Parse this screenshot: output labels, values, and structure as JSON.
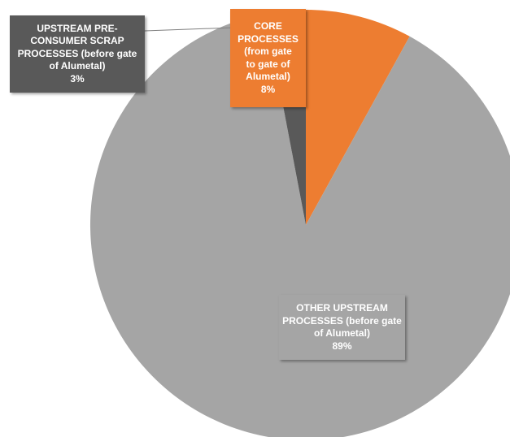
{
  "chart_data": {
    "type": "pie",
    "title": "",
    "slices": [
      {
        "key": "core",
        "lines": [
          "CORE",
          "PROCESSES",
          "(from gate",
          "to gate of",
          "Alumetal)"
        ],
        "percent_label": "8%",
        "value": 8,
        "color": "#ED7D31"
      },
      {
        "key": "other",
        "lines": [
          "OTHER UPSTREAM",
          "PROCESSES (before gate",
          "of Alumetal)"
        ],
        "percent_label": "89%",
        "value": 89,
        "color": "#A5A5A5"
      },
      {
        "key": "scrap",
        "lines": [
          "UPSTREAM PRE-",
          "CONSUMER SCRAP",
          "PROCESSES (before gate",
          "of Alumetal)"
        ],
        "percent_label": "3%",
        "value": 3,
        "color": "#595959"
      }
    ],
    "start": "12 o'clock",
    "direction": "clockwise",
    "legend": "none",
    "label_style": "callout boxes filled with slice color, white bold text, leader line for smallest slice"
  }
}
